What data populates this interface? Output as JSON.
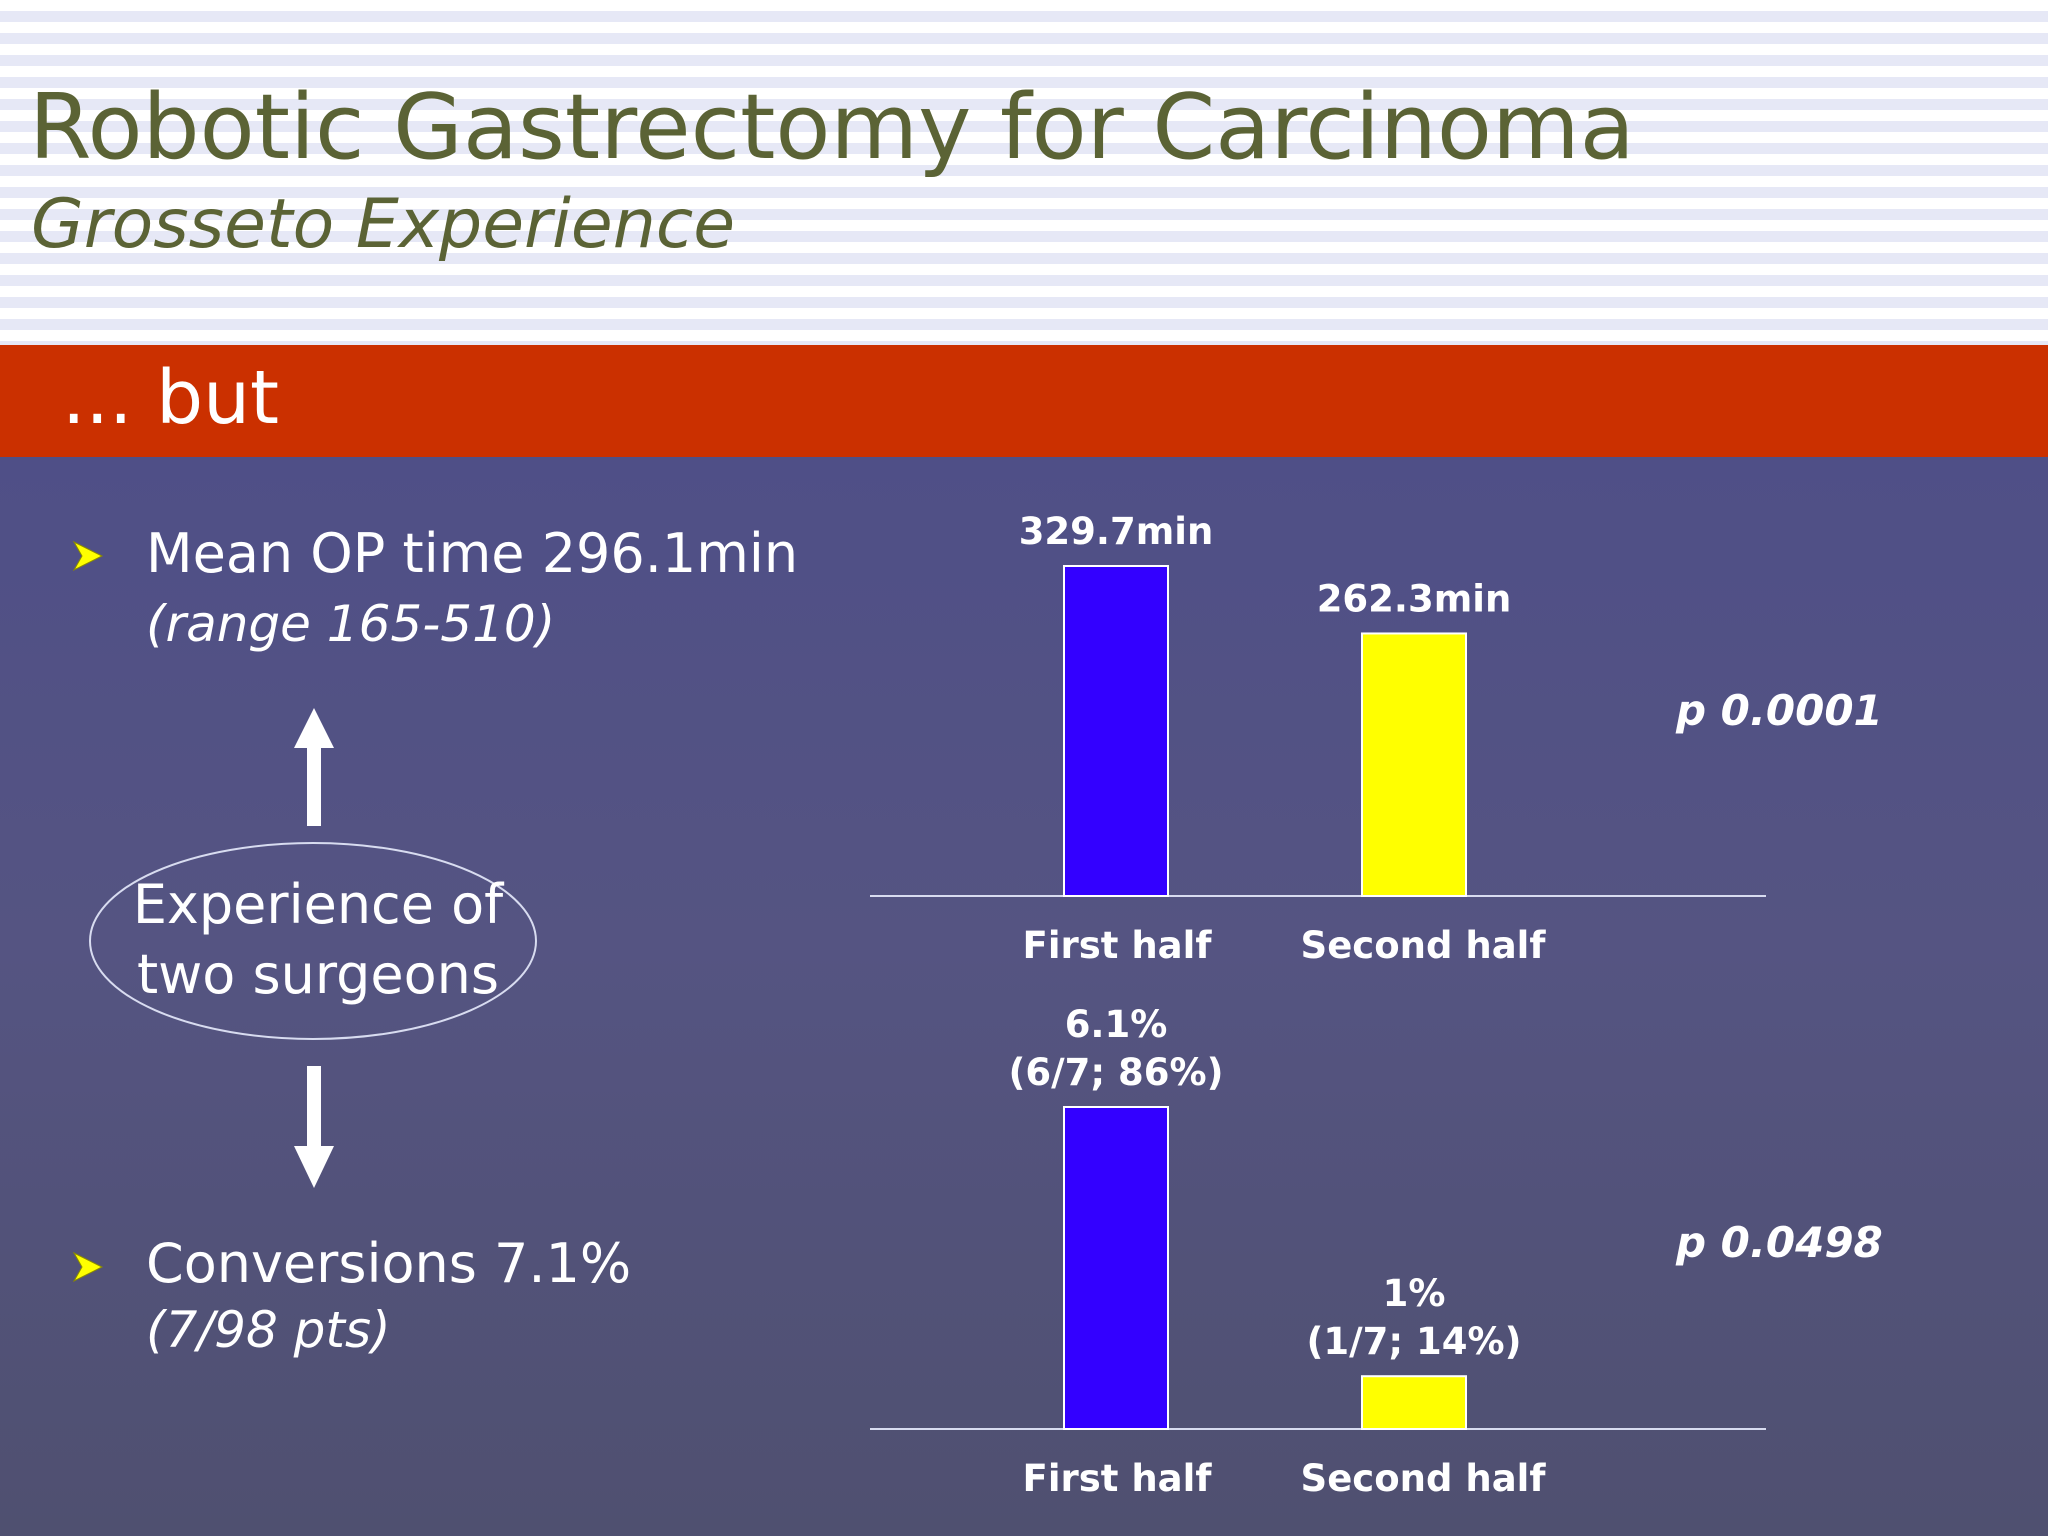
{
  "slide": {
    "title": "Robotic Gastrectomy for Carcinoma",
    "subtitle": "Grosseto Experience",
    "banner": "... but",
    "colors": {
      "title": "#5b6335",
      "banner_bg": "#cb3000",
      "first_half_bar": "#3300ff",
      "second_half_bar": "#ffff00",
      "bullet": "#ffff00"
    },
    "bullets": [
      {
        "text": "Mean OP time 296.1min",
        "sub": "(range 165-510)",
        "icon": "arrow-bullet-icon"
      },
      {
        "text": "Conversions 7.1%",
        "sub": "(7/98 pts)",
        "icon": "arrow-bullet-icon"
      }
    ],
    "experience_ellipse": {
      "line1": "Experience of",
      "line2": "two surgeons"
    }
  },
  "chart_data": [
    {
      "type": "bar",
      "categories": [
        "First half",
        "Second half"
      ],
      "values": [
        329.7,
        262.3
      ],
      "data_labels": [
        [
          "329.7min"
        ],
        [
          "262.3min"
        ]
      ],
      "colors": [
        "#3300ff",
        "#ffff00"
      ],
      "ylim": [
        0,
        329.7
      ],
      "annotation": "p 0.0001"
    },
    {
      "type": "bar",
      "categories": [
        "First half",
        "Second half"
      ],
      "values": [
        6.1,
        1
      ],
      "data_labels": [
        [
          "6.1%",
          "(6/7; 86%)"
        ],
        [
          "1%",
          "(1/7; 14%)"
        ]
      ],
      "colors": [
        "#3300ff",
        "#ffff00"
      ],
      "ylim": [
        0,
        6.1
      ],
      "annotation": "p 0.0498"
    }
  ]
}
